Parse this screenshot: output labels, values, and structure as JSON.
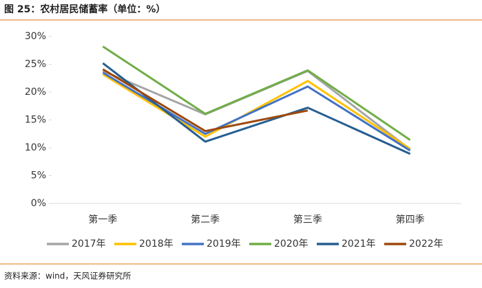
{
  "chart_data": {
    "type": "line",
    "title": "图 25：农村居民储蓄率（单位：%）",
    "source": "资料来源：wind，天风证券研究所",
    "categories": [
      "第一季",
      "第二季",
      "第三季",
      "第四季"
    ],
    "series": [
      {
        "name": "2017年",
        "color": "#a5a5a5",
        "values": [
          23.8,
          16.0,
          23.8,
          9.7
        ]
      },
      {
        "name": "2018年",
        "color": "#ffc000",
        "values": [
          23.2,
          12.0,
          22.0,
          9.8
        ]
      },
      {
        "name": "2019年",
        "color": "#4472c4",
        "values": [
          23.5,
          12.5,
          21.0,
          9.5
        ]
      },
      {
        "name": "2020年",
        "color": "#70ad47",
        "values": [
          28.2,
          16.1,
          23.9,
          11.4
        ]
      },
      {
        "name": "2021年",
        "color": "#255e91",
        "values": [
          25.2,
          11.1,
          17.2,
          8.9
        ]
      },
      {
        "name": "2022年",
        "color": "#9e480e",
        "values": [
          24.1,
          13.0,
          16.7,
          null
        ]
      }
    ],
    "ylim": [
      0,
      30
    ],
    "yticks": [
      {
        "value": 0,
        "label": "0%"
      },
      {
        "value": 5,
        "label": "5%"
      },
      {
        "value": 10,
        "label": "10%"
      },
      {
        "value": 15,
        "label": "15%"
      },
      {
        "value": 20,
        "label": "20%"
      },
      {
        "value": 25,
        "label": "25%"
      },
      {
        "value": 30,
        "label": "30%"
      }
    ],
    "legend": "bottom"
  }
}
